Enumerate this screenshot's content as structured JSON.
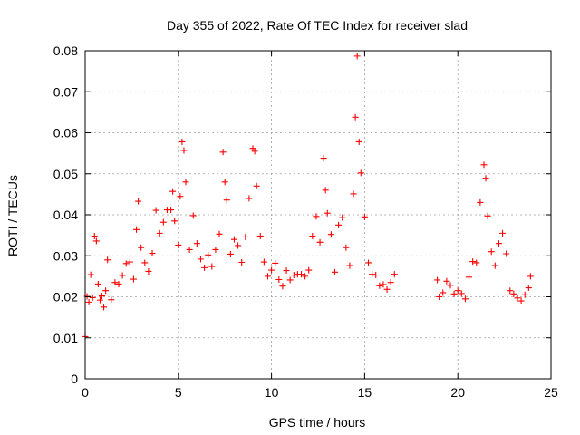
{
  "chart_data": {
    "type": "scatter",
    "title": "Day 355 of 2022, Rate Of TEC Index for receiver slad",
    "xlabel": "GPS time / hours",
    "ylabel": "ROTI / TECUs",
    "xlim": [
      0,
      25
    ],
    "ylim": [
      0,
      0.08
    ],
    "xticks": [
      "0",
      "5",
      "10",
      "15",
      "20",
      "25"
    ],
    "yticks": [
      "0",
      "0.01",
      "0.02",
      "0.03",
      "0.04",
      "0.05",
      "0.06",
      "0.07",
      "0.08"
    ],
    "grid": true,
    "marker": "+",
    "color": "#ff0000",
    "series": [
      {
        "points": [
          [
            0.0,
            0.0103
          ],
          [
            0.1,
            0.0201
          ],
          [
            0.2,
            0.0187
          ],
          [
            0.3,
            0.0254
          ],
          [
            0.4,
            0.0198
          ],
          [
            0.5,
            0.0348
          ],
          [
            0.6,
            0.0336
          ],
          [
            0.7,
            0.0231
          ],
          [
            0.8,
            0.0192
          ],
          [
            0.9,
            0.0202
          ],
          [
            1.0,
            0.0175
          ],
          [
            1.1,
            0.0215
          ],
          [
            1.2,
            0.029
          ],
          [
            1.4,
            0.0193
          ],
          [
            1.6,
            0.0235
          ],
          [
            1.8,
            0.0231
          ],
          [
            2.0,
            0.0252
          ],
          [
            2.2,
            0.0281
          ],
          [
            2.4,
            0.0285
          ],
          [
            2.6,
            0.0243
          ],
          [
            2.75,
            0.0364
          ],
          [
            2.85,
            0.0433
          ],
          [
            3.0,
            0.032
          ],
          [
            3.2,
            0.0283
          ],
          [
            3.4,
            0.0262
          ],
          [
            3.6,
            0.0306
          ],
          [
            3.8,
            0.0411
          ],
          [
            4.0,
            0.0355
          ],
          [
            4.2,
            0.0382
          ],
          [
            4.4,
            0.0412
          ],
          [
            4.6,
            0.0412
          ],
          [
            4.7,
            0.0457
          ],
          [
            4.8,
            0.0385
          ],
          [
            5.0,
            0.0326
          ],
          [
            5.1,
            0.0445
          ],
          [
            5.2,
            0.0578
          ],
          [
            5.3,
            0.0557
          ],
          [
            5.4,
            0.048
          ],
          [
            5.6,
            0.0315
          ],
          [
            5.8,
            0.0398
          ],
          [
            6.0,
            0.033
          ],
          [
            6.2,
            0.0292
          ],
          [
            6.4,
            0.0271
          ],
          [
            6.6,
            0.0302
          ],
          [
            6.8,
            0.0274
          ],
          [
            7.0,
            0.0315
          ],
          [
            7.2,
            0.0353
          ],
          [
            7.4,
            0.0553
          ],
          [
            7.5,
            0.048
          ],
          [
            7.6,
            0.0436
          ],
          [
            7.8,
            0.0304
          ],
          [
            8.0,
            0.034
          ],
          [
            8.2,
            0.0325
          ],
          [
            8.4,
            0.0284
          ],
          [
            8.6,
            0.0346
          ],
          [
            8.8,
            0.044
          ],
          [
            9.0,
            0.0562
          ],
          [
            9.1,
            0.0555
          ],
          [
            9.2,
            0.047
          ],
          [
            9.4,
            0.0348
          ],
          [
            9.6,
            0.0285
          ],
          [
            9.8,
            0.025
          ],
          [
            10.0,
            0.0265
          ],
          [
            10.2,
            0.0282
          ],
          [
            10.4,
            0.0242
          ],
          [
            10.6,
            0.0226
          ],
          [
            10.8,
            0.0264
          ],
          [
            11.0,
            0.0241
          ],
          [
            11.2,
            0.0253
          ],
          [
            11.4,
            0.0255
          ],
          [
            11.6,
            0.0255
          ],
          [
            11.8,
            0.025
          ],
          [
            12.0,
            0.0265
          ],
          [
            12.2,
            0.0348
          ],
          [
            12.4,
            0.0396
          ],
          [
            12.6,
            0.0333
          ],
          [
            12.8,
            0.0538
          ],
          [
            12.9,
            0.046
          ],
          [
            13.0,
            0.0404
          ],
          [
            13.2,
            0.0352
          ],
          [
            13.4,
            0.026
          ],
          [
            13.6,
            0.0375
          ],
          [
            13.8,
            0.0393
          ],
          [
            14.0,
            0.032
          ],
          [
            14.2,
            0.0276
          ],
          [
            14.4,
            0.0451
          ],
          [
            14.5,
            0.0638
          ],
          [
            14.6,
            0.0787
          ],
          [
            14.7,
            0.0578
          ],
          [
            14.8,
            0.0502
          ],
          [
            15.0,
            0.0395
          ],
          [
            15.2,
            0.0283
          ],
          [
            15.4,
            0.0255
          ],
          [
            15.6,
            0.0253
          ],
          [
            15.8,
            0.0227
          ],
          [
            16.0,
            0.023
          ],
          [
            16.2,
            0.0218
          ],
          [
            16.4,
            0.0235
          ],
          [
            16.6,
            0.0255
          ],
          [
            18.9,
            0.0241
          ],
          [
            19.0,
            0.02
          ],
          [
            19.2,
            0.021
          ],
          [
            19.4,
            0.0238
          ],
          [
            19.6,
            0.0228
          ],
          [
            19.8,
            0.0207
          ],
          [
            20.0,
            0.0215
          ],
          [
            20.2,
            0.0208
          ],
          [
            20.4,
            0.0195
          ],
          [
            20.6,
            0.0248
          ],
          [
            20.8,
            0.0286
          ],
          [
            21.0,
            0.0283
          ],
          [
            21.2,
            0.043
          ],
          [
            21.4,
            0.0522
          ],
          [
            21.5,
            0.0489
          ],
          [
            21.6,
            0.0397
          ],
          [
            21.8,
            0.031
          ],
          [
            22.0,
            0.0276
          ],
          [
            22.2,
            0.033
          ],
          [
            22.4,
            0.0355
          ],
          [
            22.6,
            0.0305
          ],
          [
            22.8,
            0.0215
          ],
          [
            23.0,
            0.0207
          ],
          [
            23.2,
            0.0197
          ],
          [
            23.4,
            0.019
          ],
          [
            23.6,
            0.0205
          ],
          [
            23.8,
            0.0222
          ],
          [
            23.9,
            0.025
          ]
        ]
      }
    ]
  }
}
